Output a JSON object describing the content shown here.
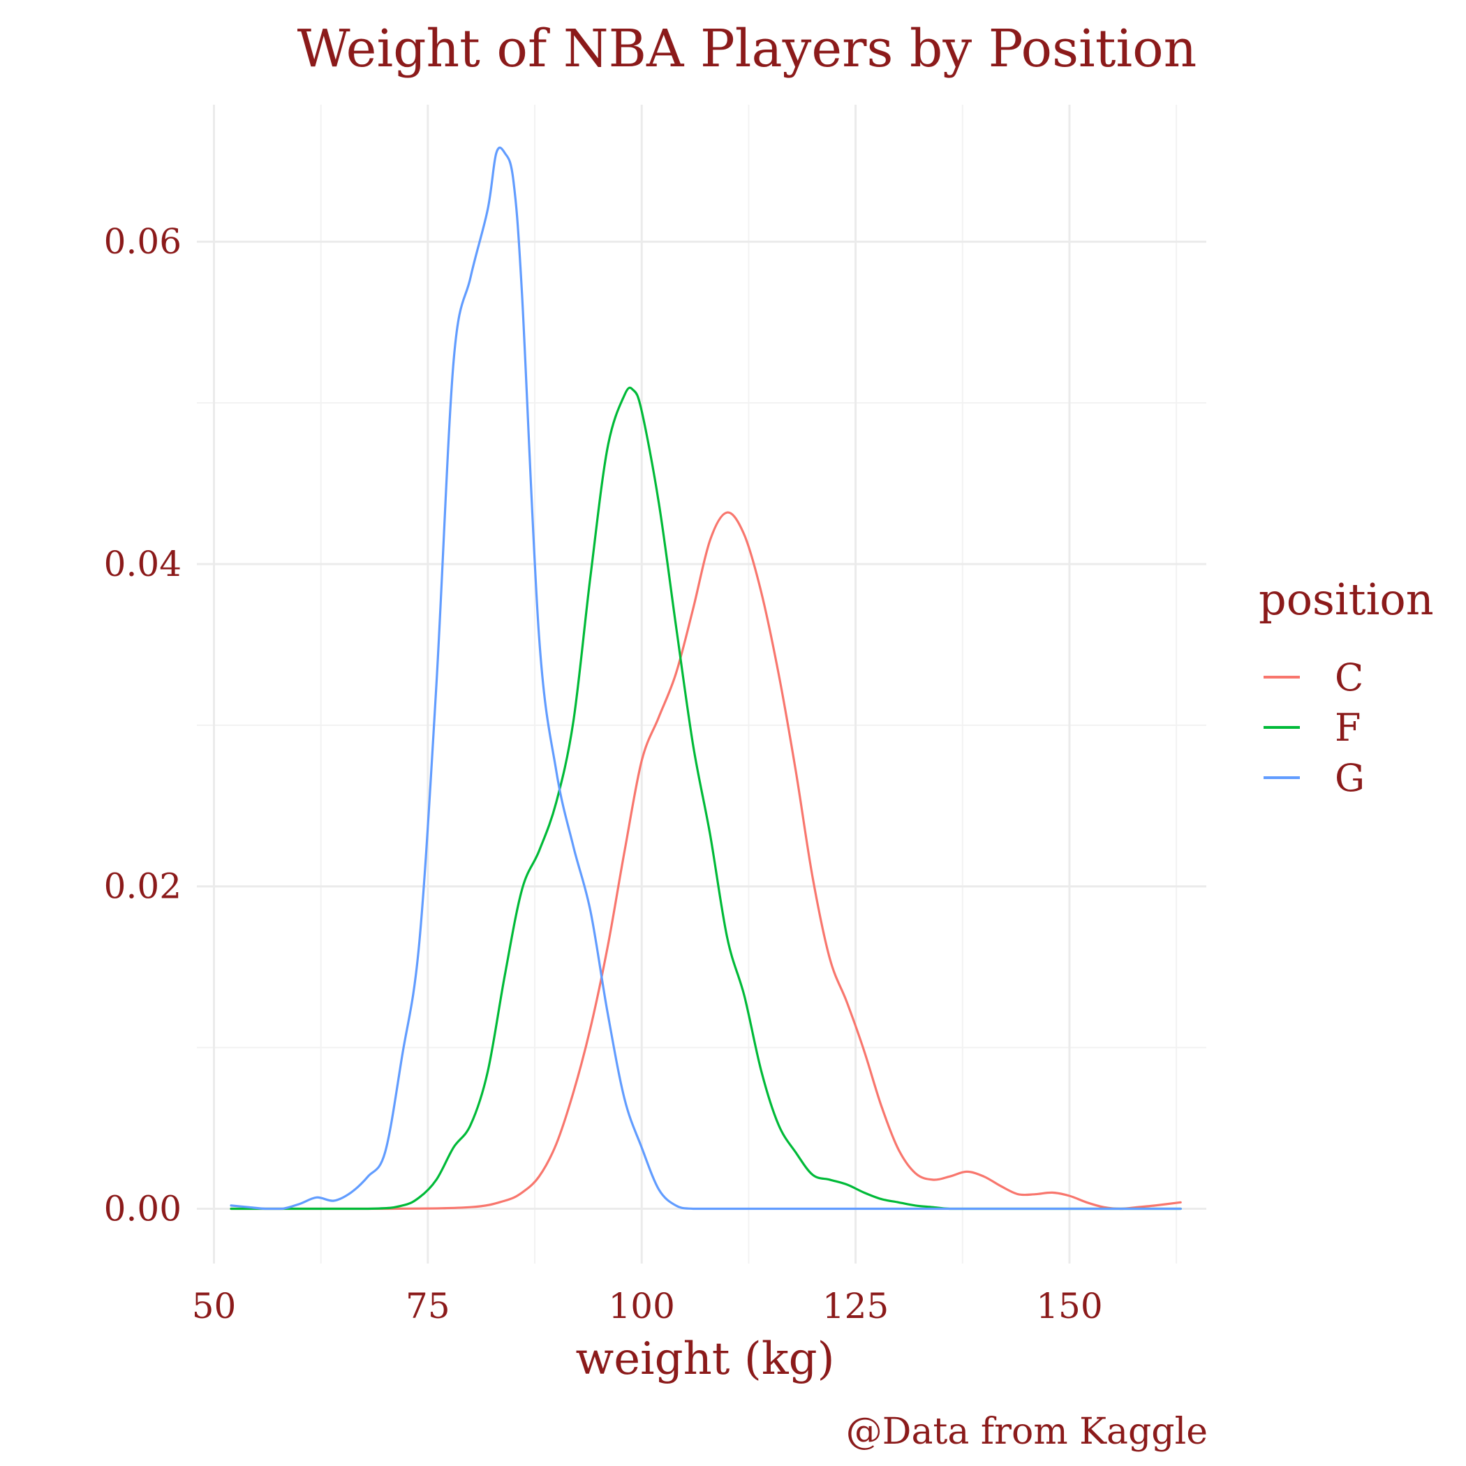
{
  "chart_data": {
    "type": "line",
    "title": "Weight of NBA Players by Position",
    "xlabel": "weight (kg)",
    "ylabel": "",
    "caption": "@Data from Kaggle",
    "xlim": [
      48,
      166
    ],
    "ylim": [
      -0.0034,
      0.0685
    ],
    "x_ticks": [
      50,
      75,
      100,
      125,
      150
    ],
    "x_minor_ticks": [
      62.5,
      87.5,
      112.5,
      137.5,
      162.5
    ],
    "x_tick_labels": [
      "50",
      "75",
      "100",
      "125",
      "150"
    ],
    "y_ticks": [
      0,
      0.02,
      0.04,
      0.06
    ],
    "y_minor_ticks": [
      0.01,
      0.03,
      0.05
    ],
    "y_tick_labels": [
      "0.00",
      "0.02",
      "0.04",
      "0.06"
    ],
    "grid": true,
    "legend": {
      "title": "position",
      "placement": "right"
    },
    "series": [
      {
        "name": "C",
        "color": "#F8766D",
        "x": [
          52,
          70,
          80,
          84,
          86,
          88,
          90,
          92,
          94,
          96,
          98,
          100,
          102,
          104,
          106,
          108,
          110,
          112,
          114,
          116,
          118,
          120,
          122,
          124,
          126,
          128,
          130,
          132,
          134,
          136,
          138,
          140,
          142,
          144,
          146,
          148,
          150,
          152,
          154,
          156,
          158,
          160,
          163
        ],
        "y": [
          0,
          0,
          0.0001,
          0.0005,
          0.001,
          0.002,
          0.004,
          0.0072,
          0.0112,
          0.0162,
          0.0222,
          0.0278,
          0.0305,
          0.0332,
          0.0372,
          0.0415,
          0.0432,
          0.0418,
          0.0382,
          0.0332,
          0.0272,
          0.0205,
          0.0155,
          0.0128,
          0.0098,
          0.0064,
          0.0037,
          0.0022,
          0.0018,
          0.002,
          0.0023,
          0.002,
          0.0014,
          0.0009,
          0.0009,
          0.001,
          0.0008,
          0.0004,
          0.0001,
          0.0,
          0.0001,
          0.0002,
          0.0004
        ]
      },
      {
        "name": "F",
        "color": "#00BA38",
        "x": [
          52,
          68,
          72,
          74,
          76,
          78,
          80,
          82,
          84,
          86,
          88,
          90,
          92,
          94,
          96,
          98,
          99,
          100,
          102,
          104,
          106,
          108,
          110,
          112,
          114,
          116,
          118,
          120,
          122,
          124,
          126,
          128,
          130,
          132,
          134,
          136,
          140,
          163
        ],
        "y": [
          0,
          0,
          0.0002,
          0.0007,
          0.0018,
          0.0038,
          0.0052,
          0.0085,
          0.0145,
          0.0198,
          0.0222,
          0.0252,
          0.0302,
          0.0392,
          0.0472,
          0.0505,
          0.0508,
          0.0495,
          0.0438,
          0.0362,
          0.0288,
          0.0232,
          0.0168,
          0.0132,
          0.0085,
          0.0052,
          0.0035,
          0.0021,
          0.0018,
          0.0015,
          0.001,
          0.0006,
          0.0004,
          0.0002,
          0.0001,
          0,
          0,
          0
        ]
      },
      {
        "name": "G",
        "color": "#619CFF",
        "x": [
          52,
          54,
          56,
          58,
          60,
          62,
          64,
          66,
          68,
          70,
          72,
          74,
          76,
          78,
          80,
          82,
          83,
          84,
          85,
          86,
          88,
          90,
          92,
          94,
          96,
          98,
          100,
          102,
          104,
          106,
          110,
          120,
          163
        ],
        "y": [
          0.0002,
          0.0001,
          0,
          0,
          0.0003,
          0.0007,
          0.0005,
          0.001,
          0.002,
          0.0035,
          0.0095,
          0.0165,
          0.0325,
          0.0525,
          0.0578,
          0.062,
          0.0655,
          0.0655,
          0.0638,
          0.0568,
          0.0355,
          0.0272,
          0.0225,
          0.0185,
          0.0122,
          0.0068,
          0.0038,
          0.0012,
          0.0002,
          0,
          0,
          0,
          0
        ]
      }
    ]
  }
}
